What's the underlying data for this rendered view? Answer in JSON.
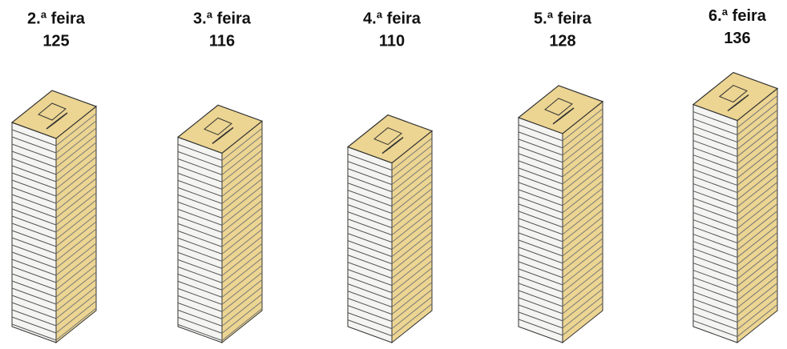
{
  "chart_data": {
    "type": "pictograph",
    "categories": [
      "2.ª feira",
      "3.ª feira",
      "4.ª feira",
      "5.ª feira",
      "6.ª feira"
    ],
    "values": [
      125,
      116,
      110,
      128,
      136
    ],
    "color": "#ecd592"
  }
}
